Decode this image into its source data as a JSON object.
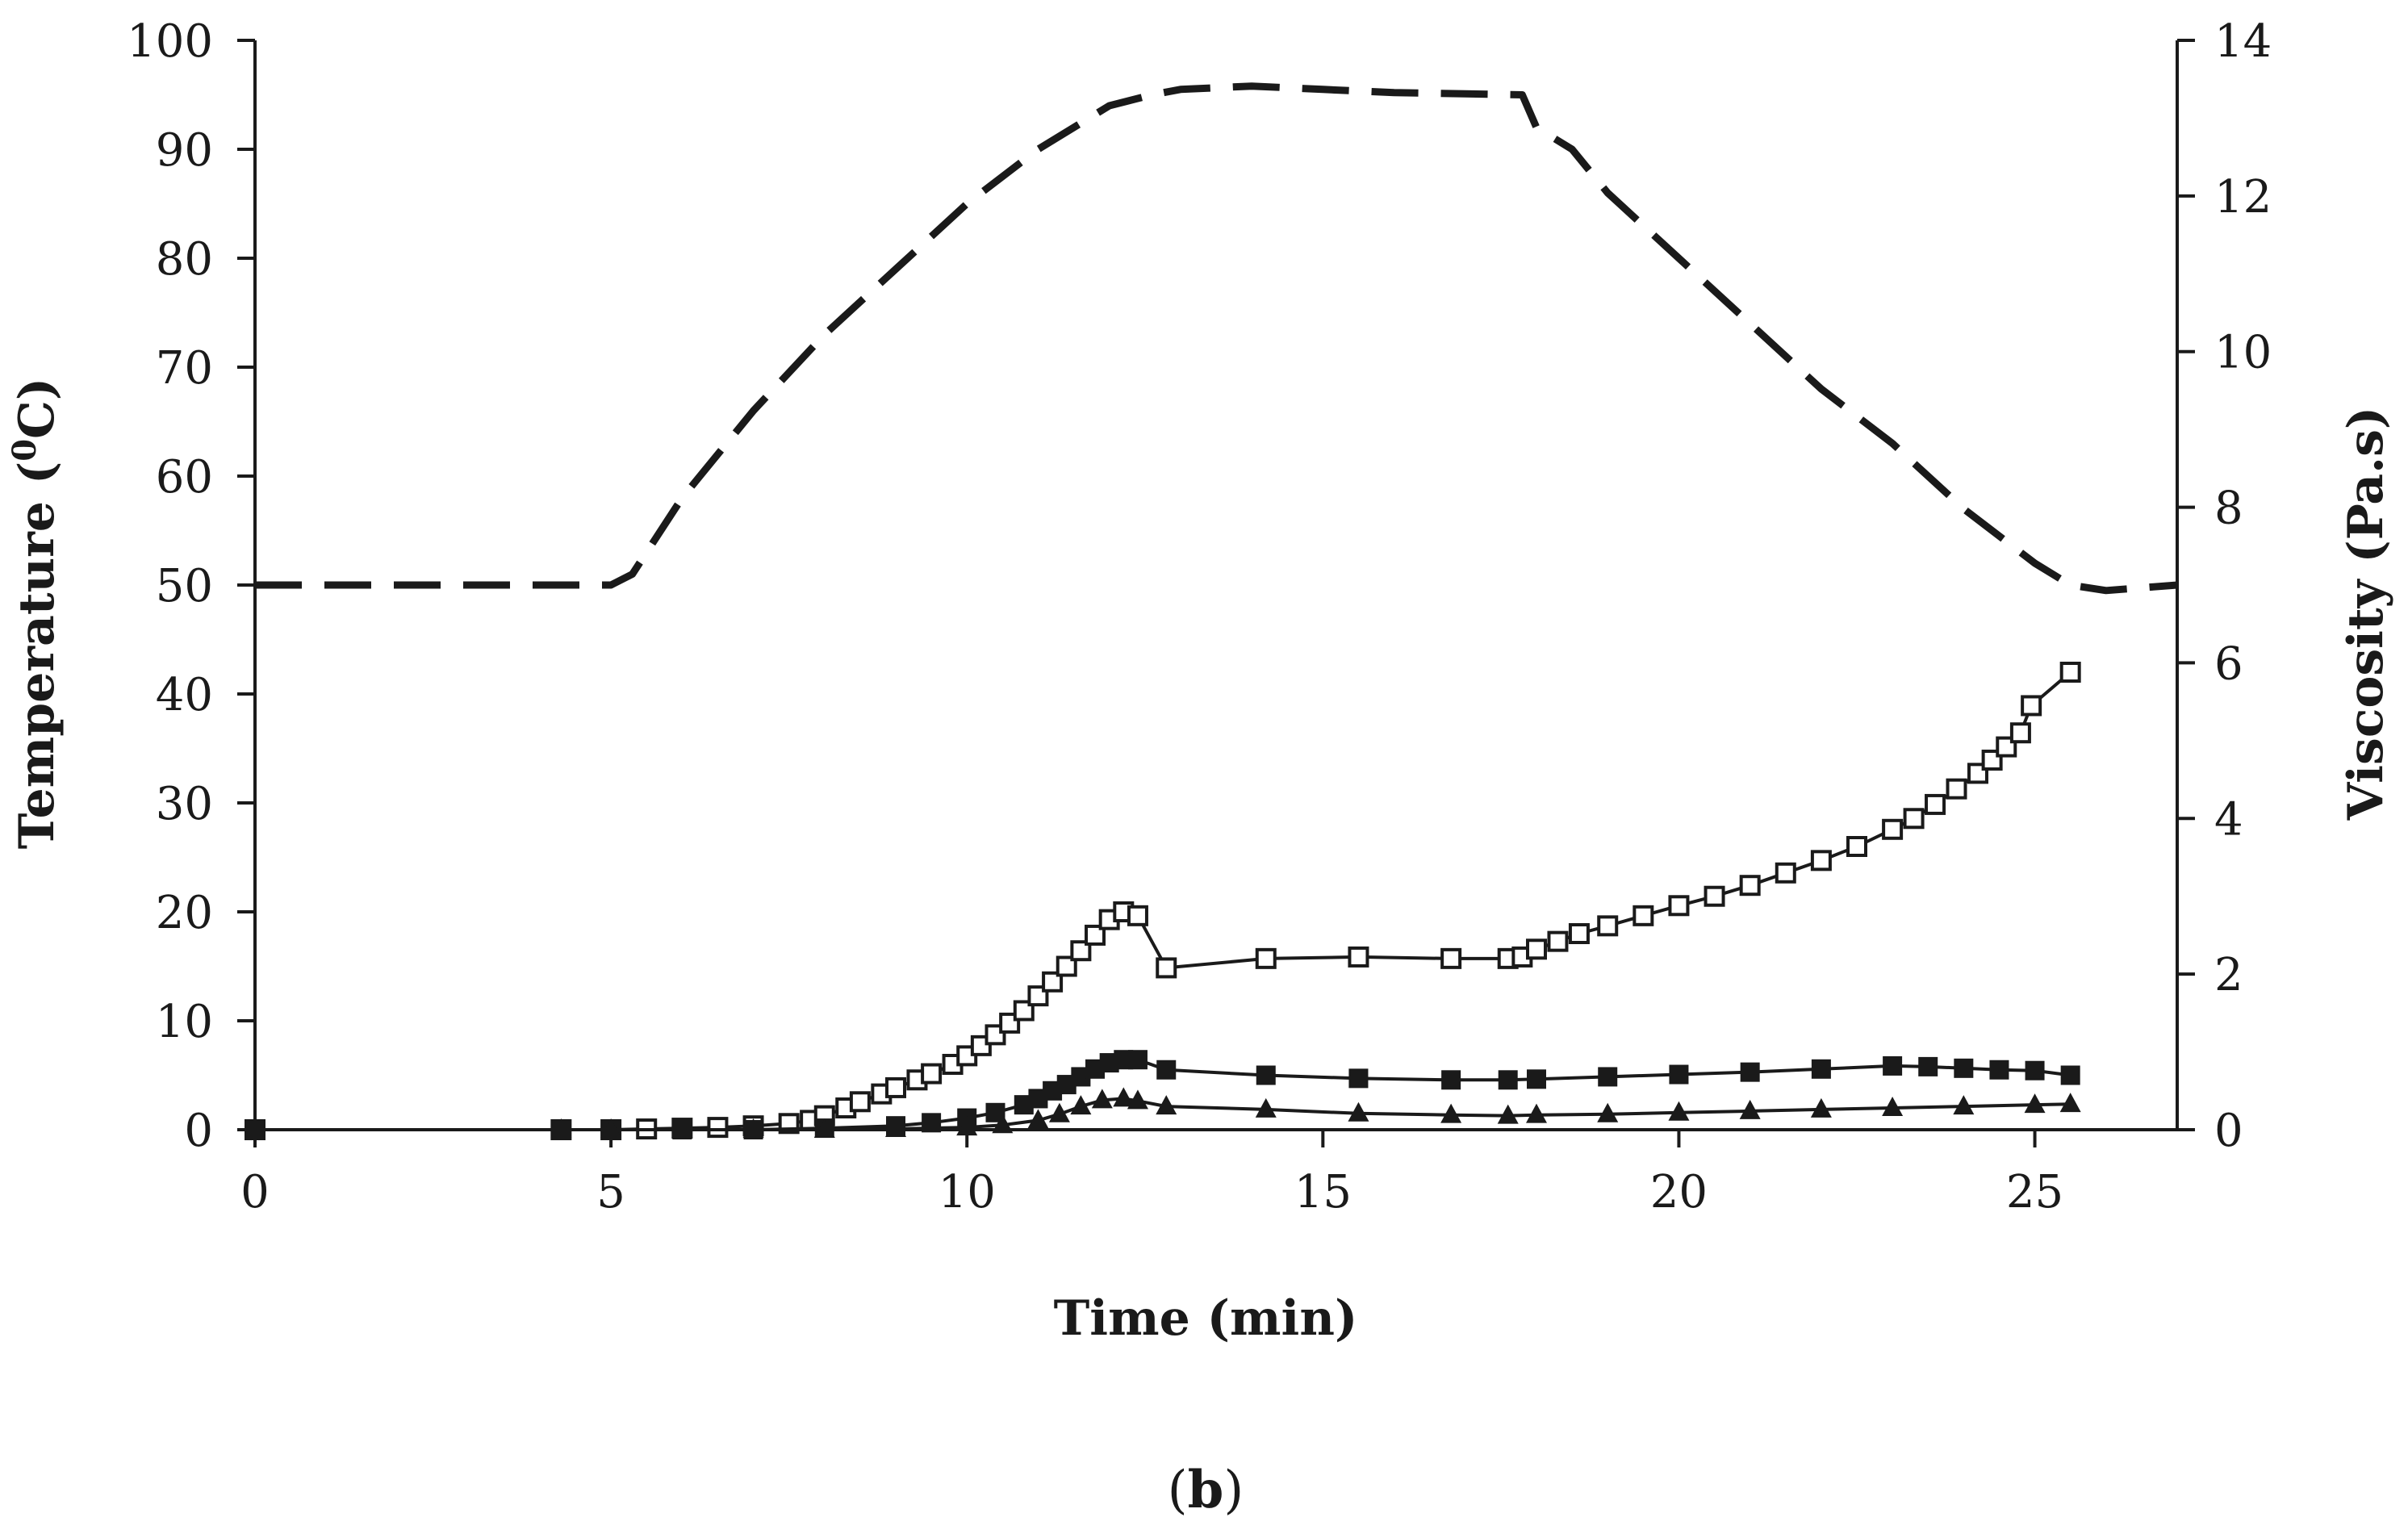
{
  "panel_label": {
    "open": "(",
    "letter": "b",
    "close": ")"
  },
  "colors": {
    "ink": "#1a1a1a",
    "background": "#ffffff"
  },
  "chart_data": {
    "type": "line",
    "title": "",
    "xlabel": "Time (min)",
    "ylabel_left": {
      "main": "Temperature (",
      "sup": "0",
      "rest": "C)"
    },
    "ylabel_right": "Viscosity (Pa.s)",
    "xlim": [
      0,
      27
    ],
    "ylim_left": [
      0,
      100
    ],
    "ylim_right": [
      0,
      14
    ],
    "xticks": [
      0,
      5,
      10,
      15,
      20,
      25
    ],
    "yticks_left": [
      0,
      10,
      20,
      30,
      40,
      50,
      60,
      70,
      80,
      90,
      100
    ],
    "yticks_right": [
      0,
      2,
      4,
      6,
      8,
      10,
      12,
      14
    ],
    "grid": false,
    "series": [
      {
        "name": "Temperature",
        "axis": "left",
        "style": "dashed",
        "marker": "none",
        "x": [
          0,
          5.0,
          5.3,
          6.0,
          7.0,
          8.0,
          9.0,
          10.0,
          11.0,
          12.0,
          12.6,
          13.0,
          14.0,
          15.0,
          16.0,
          17.0,
          17.8,
          18.0,
          18.5,
          19.0,
          20.0,
          21.0,
          22.0,
          23.0,
          24.0,
          25.0,
          25.5,
          26.0,
          27.0
        ],
        "y": [
          50,
          50,
          51,
          58,
          66,
          73,
          79,
          85,
          90,
          94,
          95,
          95.5,
          95.8,
          95.5,
          95.2,
          95.1,
          95,
          92,
          90,
          86,
          80,
          74,
          68,
          63,
          57,
          52,
          50,
          49.5,
          50
        ]
      },
      {
        "name": "Viscosity (open squares)",
        "axis": "right",
        "style": "solid",
        "marker": "open-square",
        "x": [
          0,
          4.3,
          5.0,
          5.5,
          6.0,
          6.5,
          7.0,
          7.5,
          7.8,
          8.0,
          8.3,
          8.5,
          8.8,
          9.0,
          9.3,
          9.5,
          9.8,
          10.0,
          10.2,
          10.4,
          10.6,
          10.8,
          11.0,
          11.2,
          11.4,
          11.6,
          11.8,
          12.0,
          12.2,
          12.4,
          12.8,
          14.2,
          15.5,
          16.8,
          17.6,
          17.8,
          18.0,
          18.3,
          18.6,
          19.0,
          19.5,
          20.0,
          20.5,
          21.0,
          21.5,
          22.0,
          22.5,
          23.0,
          23.3,
          23.6,
          23.9,
          24.2,
          24.4,
          24.6,
          24.8,
          24.95,
          25.5
        ],
        "y": [
          0,
          0,
          0,
          0.01,
          0.02,
          0.03,
          0.05,
          0.08,
          0.12,
          0.18,
          0.28,
          0.36,
          0.46,
          0.54,
          0.64,
          0.72,
          0.84,
          0.95,
          1.08,
          1.22,
          1.37,
          1.53,
          1.72,
          1.9,
          2.1,
          2.3,
          2.5,
          2.7,
          2.8,
          2.75,
          2.08,
          2.2,
          2.22,
          2.2,
          2.2,
          2.22,
          2.32,
          2.42,
          2.52,
          2.62,
          2.75,
          2.88,
          3.0,
          3.14,
          3.3,
          3.46,
          3.64,
          3.86,
          4.0,
          4.18,
          4.38,
          4.58,
          4.75,
          4.92,
          5.1,
          5.45,
          5.88
        ]
      },
      {
        "name": "Viscosity (filled squares)",
        "axis": "right",
        "style": "solid",
        "marker": "filled-square",
        "x": [
          0,
          4.3,
          5.0,
          6.0,
          7.0,
          8.0,
          9.0,
          9.5,
          10.0,
          10.4,
          10.8,
          11.0,
          11.2,
          11.4,
          11.6,
          11.8,
          12.0,
          12.2,
          12.4,
          12.8,
          14.2,
          15.5,
          16.8,
          17.6,
          18.0,
          19.0,
          20.0,
          21.0,
          22.0,
          23.0,
          23.5,
          24.0,
          24.5,
          25.0,
          25.5
        ],
        "y": [
          0,
          0,
          0,
          0,
          0,
          0.02,
          0.05,
          0.09,
          0.15,
          0.22,
          0.32,
          0.4,
          0.5,
          0.58,
          0.68,
          0.78,
          0.86,
          0.9,
          0.9,
          0.77,
          0.7,
          0.66,
          0.64,
          0.64,
          0.65,
          0.68,
          0.71,
          0.74,
          0.78,
          0.82,
          0.81,
          0.79,
          0.77,
          0.76,
          0.7
        ]
      },
      {
        "name": "Viscosity (filled triangles)",
        "axis": "right",
        "style": "solid",
        "marker": "filled-triangle",
        "x": [
          0,
          4.3,
          5.0,
          6.0,
          7.0,
          8.0,
          9.0,
          10.0,
          10.5,
          11.0,
          11.3,
          11.6,
          11.9,
          12.2,
          12.4,
          12.8,
          14.2,
          15.5,
          16.8,
          17.6,
          18.0,
          19.0,
          20.0,
          21.0,
          22.0,
          23.0,
          24.0,
          25.0,
          25.5
        ],
        "y": [
          0,
          0,
          0,
          0,
          0,
          0,
          0.01,
          0.03,
          0.06,
          0.12,
          0.2,
          0.3,
          0.38,
          0.4,
          0.37,
          0.3,
          0.26,
          0.21,
          0.19,
          0.18,
          0.19,
          0.2,
          0.22,
          0.24,
          0.26,
          0.28,
          0.3,
          0.32,
          0.33
        ]
      }
    ]
  }
}
